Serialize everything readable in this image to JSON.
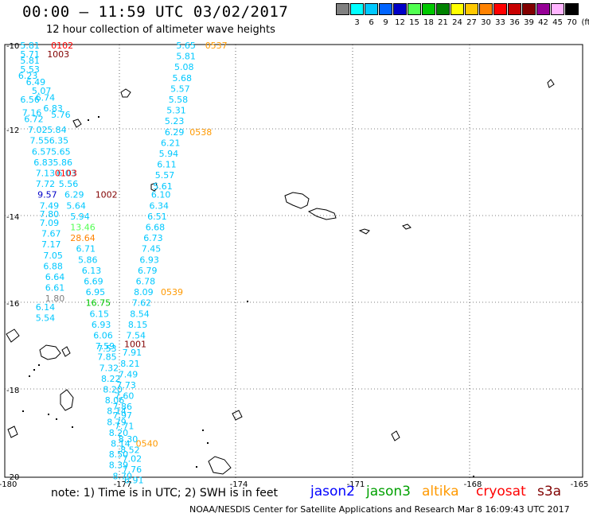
{
  "title": "00:00 – 11:59 UTC 03/02/2017",
  "subtitle": "12 hour collection of altimeter wave heights",
  "scale": {
    "unit_label": "(ft)",
    "items": [
      {
        "color": "#808080",
        "label": ""
      },
      {
        "color": "#00ffff",
        "label": "3"
      },
      {
        "color": "#00c8ff",
        "label": "6"
      },
      {
        "color": "#0064ff",
        "label": "9"
      },
      {
        "color": "#0000c8",
        "label": "12"
      },
      {
        "color": "#50ff50",
        "label": "15"
      },
      {
        "color": "#00c800",
        "label": "18"
      },
      {
        "color": "#008200",
        "label": "21"
      },
      {
        "color": "#ffff00",
        "label": "24"
      },
      {
        "color": "#ffc800",
        "label": "27"
      },
      {
        "color": "#ff8200",
        "label": "30"
      },
      {
        "color": "#ff0000",
        "label": "33"
      },
      {
        "color": "#c80000",
        "label": "36"
      },
      {
        "color": "#820000",
        "label": "39"
      },
      {
        "color": "#960096",
        "label": "42"
      },
      {
        "color": "#ffb4ff",
        "label": "45"
      },
      {
        "color": "#000000",
        "label": "70"
      }
    ]
  },
  "axes": {
    "lat_labels": [
      "-10",
      "-12",
      "-14",
      "-16",
      "-18",
      "-20"
    ],
    "lon_labels": [
      "-180",
      "-177",
      "-174",
      "-171",
      "-168",
      "-165"
    ]
  },
  "note": "note: 1) Time is in UTC; 2) SWH is in feet",
  "satellites": [
    {
      "name": "jason2",
      "color": "#0000ff"
    },
    {
      "name": "jason3",
      "color": "#00a000"
    },
    {
      "name": "altika",
      "color": "#ff9900"
    },
    {
      "name": "cryosat",
      "color": "#ff0000"
    },
    {
      "name": "s3a",
      "color": "#800000"
    }
  ],
  "credit": "NOAA/NESDIS Center for Satellite Applications and Research    Mar  8 16:09:43 UTC 2017",
  "observations": [
    {
      "text": "5.81",
      "lon": -179.6,
      "lat": -10.0,
      "color": "#00c8ff"
    },
    {
      "text": "0102",
      "lon": -178.8,
      "lat": -10.0,
      "color": "#ff0000"
    },
    {
      "text": "5.71",
      "lon": -179.6,
      "lat": -10.2,
      "color": "#00c8ff"
    },
    {
      "text": "1003",
      "lon": -178.9,
      "lat": -10.2,
      "color": "#820000"
    },
    {
      "text": "5.81",
      "lon": -179.6,
      "lat": -10.35,
      "color": "#00c8ff"
    },
    {
      "text": "5.53",
      "lon": -179.6,
      "lat": -10.55,
      "color": "#00c8ff"
    },
    {
      "text": "6.23",
      "lon": -179.65,
      "lat": -10.7,
      "color": "#00c8ff"
    },
    {
      "text": "6.49",
      "lon": -179.45,
      "lat": -10.85,
      "color": "#00c8ff"
    },
    {
      "text": "5.07",
      "lon": -179.3,
      "lat": -11.05,
      "color": "#00c8ff"
    },
    {
      "text": "6.56",
      "lon": -179.6,
      "lat": -11.25,
      "color": "#00c8ff"
    },
    {
      "text": "6.74",
      "lon": -179.2,
      "lat": -11.2,
      "color": "#00c8ff"
    },
    {
      "text": "6.83",
      "lon": -179.0,
      "lat": -11.45,
      "color": "#00c8ff"
    },
    {
      "text": "7.16",
      "lon": -179.55,
      "lat": -11.55,
      "color": "#00c8ff"
    },
    {
      "text": "5.76",
      "lon": -178.8,
      "lat": -11.6,
      "color": "#00c8ff"
    },
    {
      "text": "6.72",
      "lon": -179.5,
      "lat": -11.7,
      "color": "#00c8ff"
    },
    {
      "text": "7.02",
      "lon": -179.4,
      "lat": -11.95,
      "color": "#00c8ff"
    },
    {
      "text": "5.84",
      "lon": -178.9,
      "lat": -11.95,
      "color": "#00c8ff"
    },
    {
      "text": "7.55",
      "lon": -179.35,
      "lat": -12.2,
      "color": "#00c8ff"
    },
    {
      "text": "6.35",
      "lon": -178.85,
      "lat": -12.2,
      "color": "#00c8ff"
    },
    {
      "text": "6.57",
      "lon": -179.3,
      "lat": -12.45,
      "color": "#00c8ff"
    },
    {
      "text": "5.65",
      "lon": -178.8,
      "lat": -12.45,
      "color": "#00c8ff"
    },
    {
      "text": "6.83",
      "lon": -179.25,
      "lat": -12.7,
      "color": "#00c8ff"
    },
    {
      "text": "5.86",
      "lon": -178.75,
      "lat": -12.7,
      "color": "#00c8ff"
    },
    {
      "text": "7.13",
      "lon": -179.2,
      "lat": -12.95,
      "color": "#00c8ff"
    },
    {
      "text": "6.03",
      "lon": -178.65,
      "lat": -12.95,
      "color": "#00c8ff"
    },
    {
      "text": "0103",
      "lon": -178.7,
      "lat": -12.95,
      "color": "#ff0000"
    },
    {
      "text": "7.72",
      "lon": -179.2,
      "lat": -13.2,
      "color": "#00c8ff"
    },
    {
      "text": "5.56",
      "lon": -178.6,
      "lat": -13.2,
      "color": "#00c8ff"
    },
    {
      "text": "9.57",
      "lon": -179.15,
      "lat": -13.45,
      "color": "#0000c8"
    },
    {
      "text": "6.29",
      "lon": -178.45,
      "lat": -13.45,
      "color": "#00c8ff"
    },
    {
      "text": "1002",
      "lon": -177.65,
      "lat": -13.45,
      "color": "#820000"
    },
    {
      "text": "7.49",
      "lon": -179.1,
      "lat": -13.7,
      "color": "#00c8ff"
    },
    {
      "text": "5.64",
      "lon": -178.4,
      "lat": -13.7,
      "color": "#00c8ff"
    },
    {
      "text": "7.80",
      "lon": -179.1,
      "lat": -13.9,
      "color": "#00c8ff"
    },
    {
      "text": "5.94",
      "lon": -178.3,
      "lat": -13.95,
      "color": "#00c8ff"
    },
    {
      "text": "7.09",
      "lon": -179.1,
      "lat": -14.1,
      "color": "#00c8ff"
    },
    {
      "text": "13.46",
      "lon": -178.3,
      "lat": -14.2,
      "color": "#50ff50"
    },
    {
      "text": "7.67",
      "lon": -179.05,
      "lat": -14.35,
      "color": "#00c8ff"
    },
    {
      "text": "28.64",
      "lon": -178.3,
      "lat": -14.45,
      "color": "#ff8200"
    },
    {
      "text": "7.17",
      "lon": -179.05,
      "lat": -14.6,
      "color": "#00c8ff"
    },
    {
      "text": "6.71",
      "lon": -178.15,
      "lat": -14.7,
      "color": "#00c8ff"
    },
    {
      "text": "7.05",
      "lon": -179.0,
      "lat": -14.85,
      "color": "#00c8ff"
    },
    {
      "text": "5.86",
      "lon": -178.1,
      "lat": -14.95,
      "color": "#00c8ff"
    },
    {
      "text": "6.88",
      "lon": -179.0,
      "lat": -15.1,
      "color": "#00c8ff"
    },
    {
      "text": "6.13",
      "lon": -178.0,
      "lat": -15.2,
      "color": "#00c8ff"
    },
    {
      "text": "6.64",
      "lon": -178.95,
      "lat": -15.35,
      "color": "#00c8ff"
    },
    {
      "text": "6.69",
      "lon": -177.95,
      "lat": -15.45,
      "color": "#00c8ff"
    },
    {
      "text": "6.61",
      "lon": -178.95,
      "lat": -15.6,
      "color": "#00c8ff"
    },
    {
      "text": "6.95",
      "lon": -177.9,
      "lat": -15.7,
      "color": "#00c8ff"
    },
    {
      "text": "1.80",
      "lon": -178.95,
      "lat": -15.85,
      "color": "#808080"
    },
    {
      "text": "16.75",
      "lon": -177.9,
      "lat": -15.95,
      "color": "#00c800"
    },
    {
      "text": "6.14",
      "lon": -179.2,
      "lat": -16.05,
      "color": "#00c8ff"
    },
    {
      "text": "6.15",
      "lon": -177.8,
      "lat": -16.2,
      "color": "#00c8ff"
    },
    {
      "text": "5.54",
      "lon": -179.2,
      "lat": -16.3,
      "color": "#00c8ff"
    },
    {
      "text": "6.93",
      "lon": -177.75,
      "lat": -16.45,
      "color": "#00c8ff"
    },
    {
      "text": "6.06",
      "lon": -177.7,
      "lat": -16.7,
      "color": "#00c8ff"
    },
    {
      "text": "7.59",
      "lon": -177.65,
      "lat": -16.95,
      "color": "#00c8ff"
    },
    {
      "text": "7.53",
      "lon": -177.6,
      "lat": -17.0,
      "color": "#00c8ff"
    },
    {
      "text": "7.85",
      "lon": -177.6,
      "lat": -17.2,
      "color": "#00c8ff"
    },
    {
      "text": "7.32",
      "lon": -177.55,
      "lat": -17.45,
      "color": "#00c8ff"
    },
    {
      "text": "8.22",
      "lon": -177.5,
      "lat": -17.7,
      "color": "#00c8ff"
    },
    {
      "text": "8.20",
      "lon": -177.45,
      "lat": -17.95,
      "color": "#00c8ff"
    },
    {
      "text": "8.06",
      "lon": -177.4,
      "lat": -18.2,
      "color": "#00c8ff"
    },
    {
      "text": "8.14",
      "lon": -177.35,
      "lat": -18.45,
      "color": "#00c8ff"
    },
    {
      "text": "8.79",
      "lon": -177.35,
      "lat": -18.7,
      "color": "#00c8ff"
    },
    {
      "text": "8.20",
      "lon": -177.3,
      "lat": -18.95,
      "color": "#00c8ff"
    },
    {
      "text": "8.14",
      "lon": -177.25,
      "lat": -19.2,
      "color": "#00c8ff"
    },
    {
      "text": "8.50",
      "lon": -177.3,
      "lat": -19.45,
      "color": "#00c8ff"
    },
    {
      "text": "8.39",
      "lon": -177.3,
      "lat": -19.7,
      "color": "#00c8ff"
    },
    {
      "text": "8.70",
      "lon": -177.2,
      "lat": -19.95,
      "color": "#00c8ff"
    },
    {
      "text": "5.65",
      "lon": -175.55,
      "lat": -10.0,
      "color": "#00c8ff"
    },
    {
      "text": "0537",
      "lon": -174.8,
      "lat": -10.0,
      "color": "#ff9900"
    },
    {
      "text": "5.81",
      "lon": -175.55,
      "lat": -10.25,
      "color": "#00c8ff"
    },
    {
      "text": "5.08",
      "lon": -175.6,
      "lat": -10.5,
      "color": "#00c8ff"
    },
    {
      "text": "5.68",
      "lon": -175.65,
      "lat": -10.75,
      "color": "#00c8ff"
    },
    {
      "text": "5.57",
      "lon": -175.7,
      "lat": -11.0,
      "color": "#00c8ff"
    },
    {
      "text": "5.58",
      "lon": -175.75,
      "lat": -11.25,
      "color": "#00c8ff"
    },
    {
      "text": "5.31",
      "lon": -175.8,
      "lat": -11.5,
      "color": "#00c8ff"
    },
    {
      "text": "5.23",
      "lon": -175.85,
      "lat": -11.75,
      "color": "#00c8ff"
    },
    {
      "text": "6.29",
      "lon": -175.85,
      "lat": -12.0,
      "color": "#00c8ff"
    },
    {
      "text": "0538",
      "lon": -175.2,
      "lat": -12.0,
      "color": "#ff9900"
    },
    {
      "text": "6.21",
      "lon": -175.95,
      "lat": -12.25,
      "color": "#00c8ff"
    },
    {
      "text": "5.94",
      "lon": -176.0,
      "lat": -12.5,
      "color": "#00c8ff"
    },
    {
      "text": "6.11",
      "lon": -176.05,
      "lat": -12.75,
      "color": "#00c8ff"
    },
    {
      "text": "5.57",
      "lon": -176.1,
      "lat": -13.0,
      "color": "#00c8ff"
    },
    {
      "text": "5.61",
      "lon": -176.15,
      "lat": -13.25,
      "color": "#00c8ff"
    },
    {
      "text": "6.10",
      "lon": -176.2,
      "lat": -13.45,
      "color": "#00c8ff"
    },
    {
      "text": "6.34",
      "lon": -176.25,
      "lat": -13.7,
      "color": "#00c8ff"
    },
    {
      "text": "6.51",
      "lon": -176.3,
      "lat": -13.95,
      "color": "#00c8ff"
    },
    {
      "text": "6.68",
      "lon": -176.35,
      "lat": -14.2,
      "color": "#00c8ff"
    },
    {
      "text": "6.73",
      "lon": -176.4,
      "lat": -14.45,
      "color": "#00c8ff"
    },
    {
      "text": "7.45",
      "lon": -176.45,
      "lat": -14.7,
      "color": "#00c8ff"
    },
    {
      "text": "6.93",
      "lon": -176.5,
      "lat": -14.95,
      "color": "#00c8ff"
    },
    {
      "text": "6.79",
      "lon": -176.55,
      "lat": -15.2,
      "color": "#00c8ff"
    },
    {
      "text": "6.78",
      "lon": -176.6,
      "lat": -15.45,
      "color": "#00c8ff"
    },
    {
      "text": "8.09",
      "lon": -176.65,
      "lat": -15.7,
      "color": "#00c8ff"
    },
    {
      "text": "0539",
      "lon": -175.95,
      "lat": -15.7,
      "color": "#ff9900"
    },
    {
      "text": "7.62",
      "lon": -176.7,
      "lat": -15.95,
      "color": "#00c8ff"
    },
    {
      "text": "8.54",
      "lon": -176.75,
      "lat": -16.2,
      "color": "#00c8ff"
    },
    {
      "text": "8.15",
      "lon": -176.8,
      "lat": -16.45,
      "color": "#00c8ff"
    },
    {
      "text": "7.54",
      "lon": -176.85,
      "lat": -16.7,
      "color": "#00c8ff"
    },
    {
      "text": "1001",
      "lon": -176.9,
      "lat": -16.9,
      "color": "#820000"
    },
    {
      "text": "7.91",
      "lon": -176.95,
      "lat": -17.1,
      "color": "#00c8ff"
    },
    {
      "text": "8.21",
      "lon": -177.0,
      "lat": -17.35,
      "color": "#00c8ff"
    },
    {
      "text": "7.49",
      "lon": -177.05,
      "lat": -17.6,
      "color": "#00c8ff"
    },
    {
      "text": "7.73",
      "lon": -177.1,
      "lat": -17.85,
      "color": "#00c8ff"
    },
    {
      "text": "7.60",
      "lon": -177.15,
      "lat": -18.1,
      "color": "#00c8ff"
    },
    {
      "text": "7.86",
      "lon": -177.2,
      "lat": -18.35,
      "color": "#00c8ff"
    },
    {
      "text": "7.97",
      "lon": -177.2,
      "lat": -18.55,
      "color": "#00c8ff"
    },
    {
      "text": "7.71",
      "lon": -177.15,
      "lat": -18.8,
      "color": "#00c8ff"
    },
    {
      "text": "8.30",
      "lon": -177.05,
      "lat": -19.1,
      "color": "#00c8ff"
    },
    {
      "text": "0540",
      "lon": -176.6,
      "lat": -19.2,
      "color": "#ff9900"
    },
    {
      "text": "8.52",
      "lon": -177.0,
      "lat": -19.35,
      "color": "#00c8ff"
    },
    {
      "text": "7.02",
      "lon": -176.95,
      "lat": -19.55,
      "color": "#00c8ff"
    },
    {
      "text": "7.76",
      "lon": -176.95,
      "lat": -19.8,
      "color": "#00c8ff"
    },
    {
      "text": "6.91",
      "lon": -176.9,
      "lat": -20.05,
      "color": "#00c8ff"
    }
  ]
}
